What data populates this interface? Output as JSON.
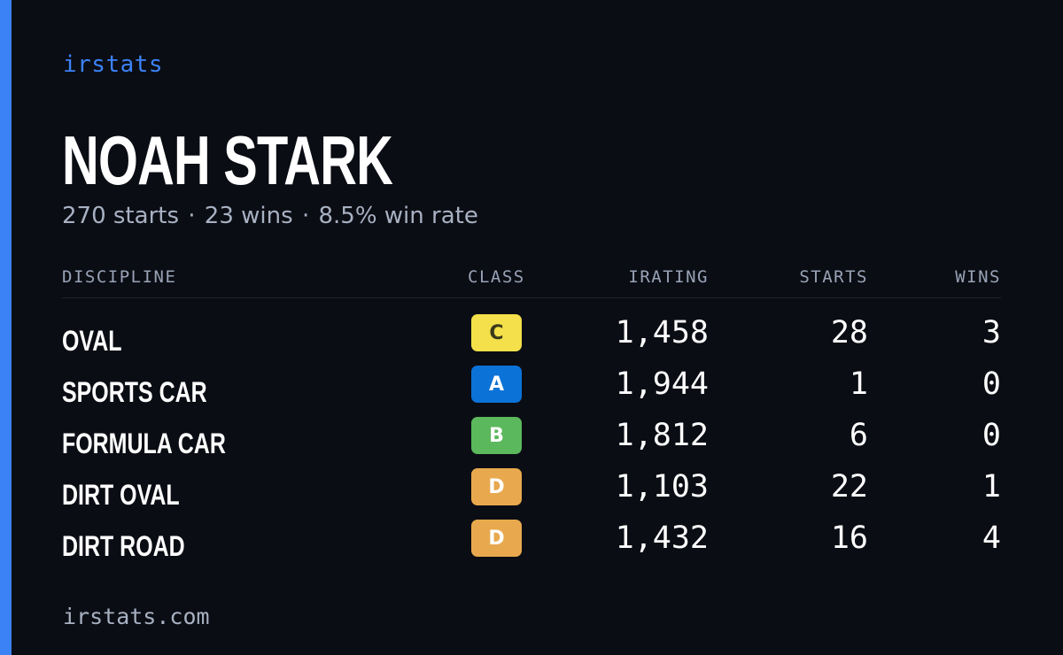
{
  "colors": {
    "accent": "#3b82f6",
    "background": "#0b0d14",
    "class_C": "#f3e04a",
    "class_A": "#0b72d8",
    "class_B": "#5cb85c",
    "class_D": "#e8a94e"
  },
  "brand": "irstats",
  "driver": {
    "name": "NOAH STARK",
    "starts_text": "270 starts",
    "wins_text": "23 wins",
    "win_rate_text": "8.5% win rate",
    "separator": "·"
  },
  "table": {
    "headers": {
      "discipline": "DISCIPLINE",
      "class": "CLASS",
      "irating": "IRATING",
      "starts": "STARTS",
      "wins": "WINS"
    },
    "rows": [
      {
        "discipline": "OVAL",
        "class": "C",
        "irating": "1,458",
        "starts": "28",
        "wins": "3"
      },
      {
        "discipline": "SPORTS CAR",
        "class": "A",
        "irating": "1,944",
        "starts": "1",
        "wins": "0"
      },
      {
        "discipline": "FORMULA CAR",
        "class": "B",
        "irating": "1,812",
        "starts": "6",
        "wins": "0"
      },
      {
        "discipline": "DIRT OVAL",
        "class": "D",
        "irating": "1,103",
        "starts": "22",
        "wins": "1"
      },
      {
        "discipline": "DIRT ROAD",
        "class": "D",
        "irating": "1,432",
        "starts": "16",
        "wins": "4"
      }
    ]
  },
  "footer": "irstats.com"
}
